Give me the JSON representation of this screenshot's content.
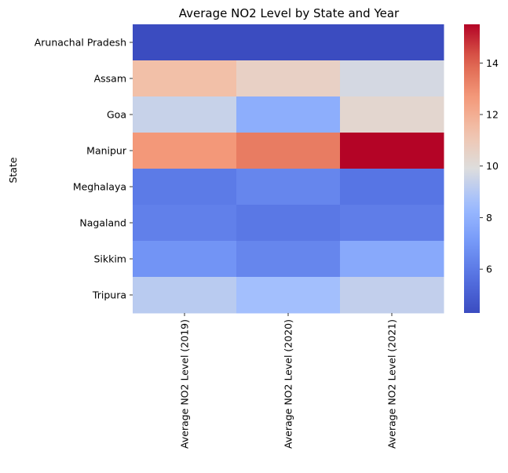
{
  "chart_data": {
    "type": "heatmap",
    "title": "Average NO2 Level by State and Year",
    "ylabel": "State",
    "xlabel": "",
    "rows": [
      "Arunachal Pradesh",
      "Assam",
      "Goa",
      "Manipur",
      "Meghalaya",
      "Nagaland",
      "Sikkim",
      "Tripura"
    ],
    "columns": [
      "Average NO2 Level (2019)",
      "Average NO2 Level (2020)",
      "Average NO2 Level (2021)"
    ],
    "values": [
      [
        4.3,
        4.3,
        4.3
      ],
      [
        11.4,
        10.6,
        9.7
      ],
      [
        9.4,
        7.9,
        10.3
      ],
      [
        12.7,
        13.4,
        15.5
      ],
      [
        6.0,
        6.4,
        5.8
      ],
      [
        6.2,
        5.9,
        6.1
      ],
      [
        6.9,
        6.4,
        7.7
      ],
      [
        9.1,
        8.6,
        9.3
      ]
    ],
    "colormap": "coolwarm",
    "vmin": 4.3,
    "vmax": 15.5,
    "colorbar_ticks": [
      6,
      8,
      10,
      12,
      14
    ]
  }
}
